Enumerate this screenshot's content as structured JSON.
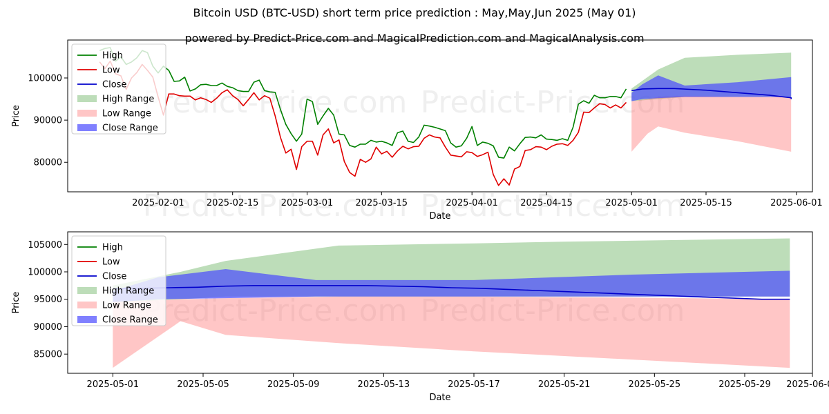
{
  "header": {
    "title": "Bitcoin USD (BTC-USD) short term price prediction : May,May,Jun 2025 (May 01)",
    "subtitle": "powered by Predict-Price.com and MagicalPrediction.com and MagicalAnalysis.com"
  },
  "watermark": "Predict-Price.com",
  "colors": {
    "high": "#008000",
    "low": "#e00000",
    "close": "#0000cc",
    "high_range": "#5aaa50",
    "low_range": "#ff7070",
    "close_range": "#4a4aff"
  },
  "chart_data": [
    {
      "type": "line",
      "xlabel": "Date",
      "ylabel": "Price",
      "x_range": [
        "2025-01-15",
        "2025-06-04"
      ],
      "ylim": [
        73000,
        109000
      ],
      "x_ticks": [
        "2025-02-01",
        "2025-02-15",
        "2025-03-01",
        "2025-03-15",
        "2025-04-01",
        "2025-04-15",
        "2025-05-01",
        "2025-05-15",
        "2025-06-01"
      ],
      "y_ticks": [
        80000,
        90000,
        100000
      ],
      "legend": {
        "placement": "top-left",
        "entries": [
          "High",
          "Low",
          "Close",
          "High Range",
          "Low Range",
          "Close Range"
        ]
      },
      "history_start": "2025-01-21",
      "series": [
        {
          "name": "High",
          "values": [
            106500,
            107000,
            107200,
            104000,
            105000,
            103200,
            103800,
            104800,
            106500,
            106000,
            102800,
            101200,
            102800,
            101800,
            99200,
            99300,
            100200,
            96900,
            97400,
            98400,
            98500,
            98200,
            98200,
            98800,
            98000,
            97700,
            97000,
            96800,
            96800,
            99000,
            99500,
            97000,
            96700,
            96600,
            92500,
            89000,
            86800,
            85000,
            86700,
            95000,
            94400,
            89000,
            91000,
            92800,
            91200,
            86700,
            86500,
            84000,
            83600,
            84300,
            84300,
            85200,
            84800,
            85000,
            84600,
            84000,
            87000,
            87400,
            85000,
            84700,
            86000,
            88800,
            88600,
            88300,
            87900,
            87500,
            84600,
            83600,
            83900,
            85700,
            88500,
            84000,
            84800,
            84500,
            83900,
            81200,
            81000,
            83600,
            82700,
            84400,
            85900,
            86000,
            85800,
            86500,
            85500,
            85400,
            85200,
            85600,
            85200,
            88300,
            93800,
            94600,
            94000,
            95900,
            95300,
            95300,
            95600,
            95600,
            95300,
            97400
          ]
        },
        {
          "name": "Low",
          "values": [
            103800,
            102200,
            104000,
            101000,
            100500,
            97300,
            100000,
            101300,
            103200,
            101800,
            100200,
            95500,
            91200,
            96200,
            96200,
            95800,
            95700,
            95700,
            94800,
            95300,
            94900,
            94200,
            95200,
            96500,
            97200,
            95800,
            94900,
            93400,
            94900,
            96500,
            94800,
            95800,
            95200,
            91000,
            85900,
            82200,
            83100,
            78300,
            83700,
            85000,
            85000,
            81700,
            86500,
            87900,
            84600,
            85300,
            80200,
            77600,
            76700,
            80700,
            80000,
            80800,
            83600,
            82000,
            82600,
            81200,
            82700,
            83800,
            83200,
            83700,
            83800,
            85700,
            86500,
            86000,
            85800,
            83600,
            81700,
            81500,
            81300,
            82500,
            82300,
            81400,
            81800,
            82400,
            77100,
            74500,
            76100,
            74600,
            78400,
            79000,
            82800,
            83000,
            83700,
            83600,
            83000,
            83800,
            84300,
            84400,
            84000,
            85200,
            87100,
            91900,
            91800,
            92900,
            93900,
            93700,
            92900,
            93600,
            92900,
            94200
          ]
        },
        {
          "name": "Close",
          "values": [
            97000,
            97400,
            97500,
            97500,
            97300,
            97100,
            96800,
            96500,
            96200,
            95900,
            95600,
            95300,
            95000
          ]
        },
        {
          "name": "High Range",
          "values": [
            [
              94500,
              97500
            ],
            [
              95000,
              102000
            ],
            [
              95500,
              104800
            ],
            [
              95500,
              105500
            ],
            [
              95500,
              106000
            ]
          ]
        },
        {
          "name": "Low Range",
          "values": [
            [
              82500,
              94500
            ],
            [
              86800,
              95000
            ],
            [
              88500,
              95500
            ],
            [
              87000,
              95800
            ],
            [
              85000,
              95500
            ],
            [
              82500,
              95500
            ]
          ]
        },
        {
          "name": "Close Range",
          "values": [
            [
              94500,
              96500
            ],
            [
              95000,
              98500
            ],
            [
              95200,
              100600
            ],
            [
              95500,
              98200
            ],
            [
              95500,
              99000
            ],
            [
              95500,
              100200
            ]
          ]
        }
      ]
    },
    {
      "type": "line",
      "xlabel": "Date",
      "ylabel": "Price",
      "x_range": [
        "2025-04-29",
        "2025-06-01"
      ],
      "ylim": [
        81500,
        107300
      ],
      "x_ticks": [
        "2025-05-01",
        "2025-05-05",
        "2025-05-09",
        "2025-05-13",
        "2025-05-17",
        "2025-05-21",
        "2025-05-25",
        "2025-05-29",
        "2025-06-01"
      ],
      "y_ticks": [
        85000,
        90000,
        95000,
        100000,
        105000
      ],
      "legend": {
        "placement": "top-left",
        "entries": [
          "High",
          "Low",
          "Close",
          "High Range",
          "Low Range",
          "Close Range"
        ]
      },
      "series": [
        {
          "name": "Close",
          "values": [
            96900,
            97000,
            97100,
            97200,
            97400,
            97500,
            97500,
            97500,
            97500,
            97500,
            97400,
            97300,
            97100,
            97000,
            96800,
            96600,
            96400,
            96200,
            96000,
            95800,
            95600,
            95400,
            95200,
            95000,
            95000
          ]
        },
        {
          "name": "High Range",
          "values": [
            [
              94500,
              97500
            ],
            [
              95000,
              100000
            ],
            [
              95500,
              102000
            ],
            [
              95500,
              104800
            ],
            [
              95500,
              105200
            ],
            [
              95500,
              105500
            ],
            [
              95500,
              105800
            ],
            [
              95500,
              106100
            ]
          ]
        },
        {
          "name": "Low Range",
          "values": [
            [
              82500,
              94500
            ],
            [
              91000,
              95000
            ],
            [
              88500,
              95200
            ],
            [
              87000,
              95500
            ],
            [
              85500,
              95500
            ],
            [
              84000,
              95300
            ],
            [
              82500,
              95000
            ]
          ]
        },
        {
          "name": "Close Range",
          "values": [
            [
              94500,
              96500
            ],
            [
              95000,
              99000
            ],
            [
              95200,
              100500
            ],
            [
              95500,
              98500
            ],
            [
              95500,
              98500
            ],
            [
              95500,
              99500
            ],
            [
              95500,
              100200
            ]
          ]
        }
      ]
    }
  ]
}
